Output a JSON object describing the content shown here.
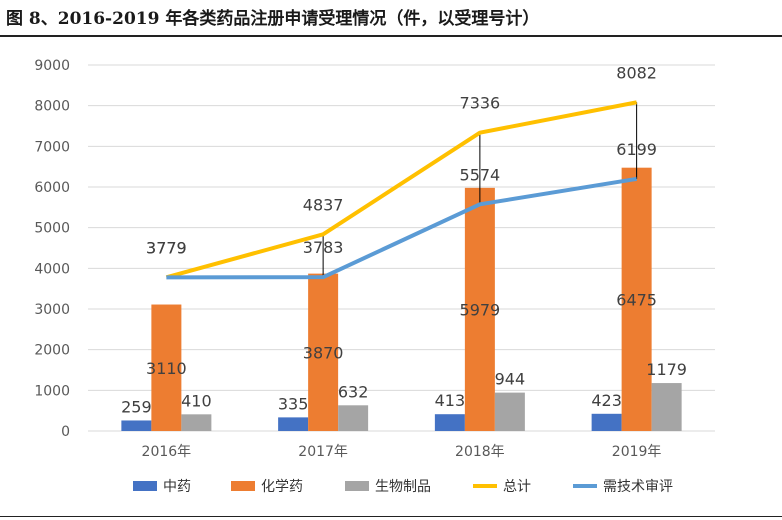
{
  "figure_title": "图 8、2016-2019 年各类药品注册申请受理情况（件，以受理号计）",
  "colors": {
    "中药": "#4472C4",
    "化学药": "#ED7D31",
    "生物制品": "#A5A5A5",
    "总计": "#FFC000",
    "需技术审评": "#5B9BD5"
  },
  "chart_data": {
    "type": "bar",
    "title": "",
    "xlabel": "",
    "ylabel": "",
    "ylim": [
      0,
      9000
    ],
    "yticks": [
      "0",
      "1000",
      "2000",
      "3000",
      "4000",
      "5000",
      "6000",
      "7000",
      "8000",
      "9000"
    ],
    "grid": true,
    "legend_position": "bottom",
    "categories": [
      "2016年",
      "2017年",
      "2018年",
      "2019年"
    ],
    "series": [
      {
        "name": "中药",
        "type": "bar",
        "values": [
          259,
          335,
          413,
          423
        ]
      },
      {
        "name": "化学药",
        "type": "bar",
        "values": [
          3110,
          3870,
          5979,
          6475
        ]
      },
      {
        "name": "生物制品",
        "type": "bar",
        "values": [
          410,
          632,
          944,
          1179
        ]
      },
      {
        "name": "总计",
        "type": "line",
        "values": [
          3779,
          4837,
          7336,
          8082
        ]
      },
      {
        "name": "需技术审评",
        "type": "line",
        "values": [
          3779,
          3783,
          5574,
          6199
        ]
      }
    ]
  }
}
